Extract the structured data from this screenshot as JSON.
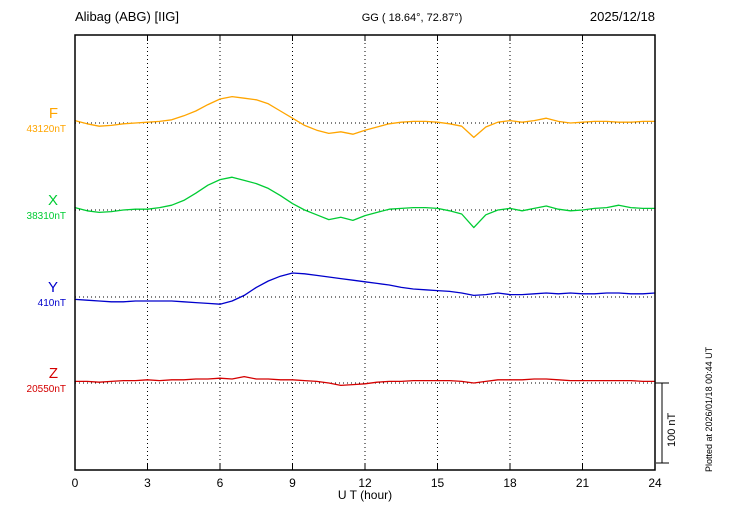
{
  "header": {
    "station": "Alibag (ABG)  [IIG]",
    "coordinates": "GG ( 18.64°, 72.87°)",
    "date": "2025/12/18"
  },
  "footer": {
    "xlabel": "U T (hour)",
    "plotted_at": "Plotted at 2026/01/18 00:44 UT"
  },
  "chart_data": {
    "type": "line",
    "title": "Alibag (ABG)  [IIG]",
    "subtitle": "GG ( 18.64°, 72.87°)",
    "date": "2025/12/18",
    "xlabel": "U T (hour)",
    "x_range": [
      0,
      24
    ],
    "x_step_hours": 0.5,
    "x_ticks": [
      0,
      3,
      6,
      9,
      12,
      15,
      18,
      21,
      24
    ],
    "grid": "dotted-vertical-at-3h-and-dotted-baselines",
    "scale_bar": {
      "label": "100 nT",
      "nT": 100
    },
    "plotted_at": "Plotted at 2026/01/18 00:44 UT",
    "series": [
      {
        "key": "F",
        "label": "F",
        "base_value_label": "43120nT",
        "color": "#FFA500",
        "offsets_nT": [
          3,
          -1,
          -4,
          -3,
          -1,
          0,
          1,
          2,
          4,
          9,
          15,
          23,
          30,
          33,
          31,
          29,
          24,
          15,
          6,
          -3,
          -9,
          -13,
          -11,
          -14,
          -9,
          -5,
          -1,
          1,
          2,
          2,
          1,
          -1,
          -4,
          -18,
          -5,
          1,
          3,
          1,
          3,
          6,
          2,
          0,
          1,
          2,
          2,
          1,
          1,
          2,
          2
        ]
      },
      {
        "key": "X",
        "label": "X",
        "base_value_label": "38310nT",
        "color": "#00CC33",
        "offsets_nT": [
          3,
          -1,
          -3,
          -2,
          0,
          1,
          1,
          3,
          6,
          12,
          21,
          31,
          38,
          41,
          37,
          33,
          27,
          18,
          8,
          0,
          -6,
          -12,
          -9,
          -13,
          -7,
          -3,
          1,
          2,
          3,
          3,
          2,
          -1,
          -5,
          -22,
          -6,
          0,
          2,
          -1,
          2,
          5,
          1,
          -1,
          0,
          2,
          3,
          6,
          3,
          2,
          2
        ]
      },
      {
        "key": "Y",
        "label": "Y",
        "base_value_label": "410nT",
        "color": "#0000CC",
        "offsets_nT": [
          -3,
          -4,
          -5,
          -6,
          -6,
          -5,
          -5,
          -5,
          -5,
          -6,
          -7,
          -8,
          -9,
          -5,
          2,
          12,
          20,
          26,
          30,
          29,
          27,
          25,
          23,
          21,
          19,
          17,
          15,
          12,
          10,
          9,
          8,
          7,
          5,
          2,
          3,
          5,
          3,
          3,
          4,
          5,
          4,
          5,
          4,
          4,
          5,
          5,
          4,
          4,
          5
        ]
      },
      {
        "key": "Z",
        "label": "Z",
        "base_value_label": "20550nT",
        "color": "#D40000",
        "offsets_nT": [
          2,
          2,
          1,
          2,
          3,
          3,
          4,
          3,
          4,
          4,
          5,
          5,
          6,
          5,
          8,
          5,
          5,
          4,
          4,
          3,
          2,
          0,
          -3,
          -2,
          -1,
          1,
          2,
          2,
          3,
          3,
          3,
          3,
          2,
          0,
          2,
          4,
          4,
          4,
          5,
          5,
          4,
          3,
          3,
          3,
          3,
          3,
          3,
          2,
          2
        ]
      }
    ]
  }
}
